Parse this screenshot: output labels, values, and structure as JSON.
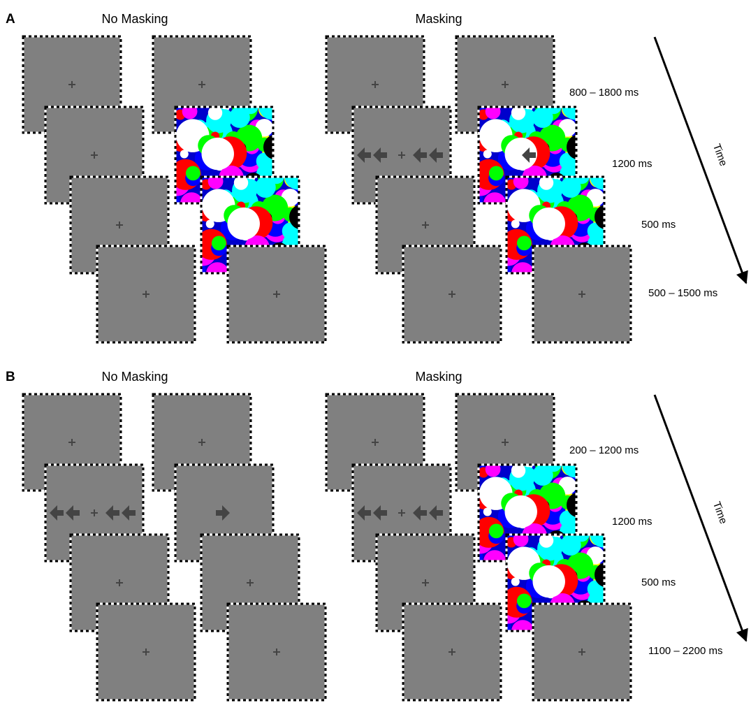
{
  "panels": [
    {
      "label": "A",
      "columns": [
        {
          "title": "No Masking"
        },
        {
          "title": "Masking"
        }
      ],
      "timings": [
        "800 – 1800 ms",
        "1200 ms",
        "500 ms",
        "500 – 1500 ms"
      ],
      "time_label": "Time"
    },
    {
      "label": "B",
      "columns": [
        {
          "title": "No Masking"
        },
        {
          "title": "Masking"
        }
      ],
      "timings": [
        "200 – 1200 ms",
        "1200 ms",
        "500 ms",
        "1100 – 2200 ms"
      ],
      "time_label": "Time"
    }
  ]
}
